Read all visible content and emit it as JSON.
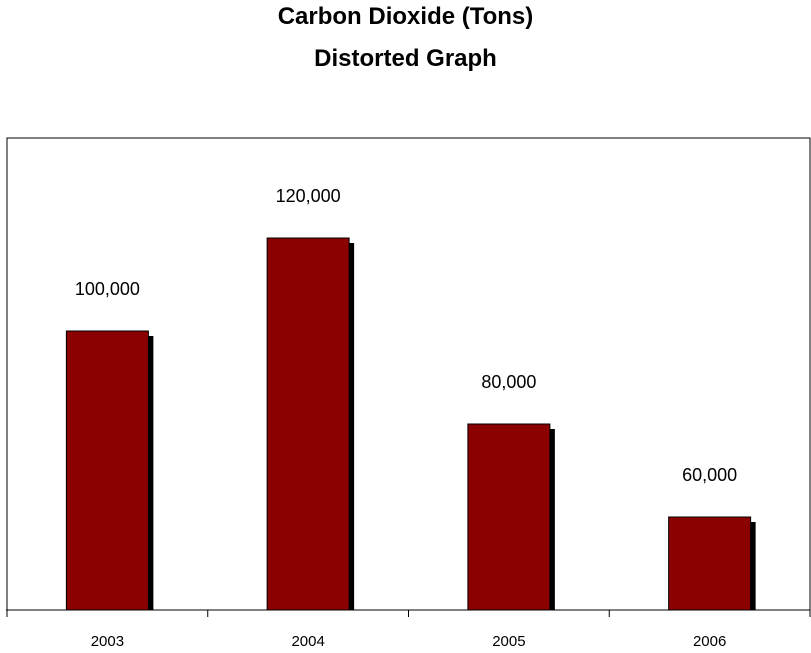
{
  "chart_data": {
    "type": "bar",
    "title": "Carbon Dioxide (Tons)",
    "subtitle": "Distorted Graph",
    "categories": [
      "2003",
      "2004",
      "2005",
      "2006"
    ],
    "values": [
      100000,
      120000,
      80000,
      60000
    ],
    "data_labels": [
      "100,000",
      "120,000",
      "80,000",
      "60,000"
    ],
    "grid": false,
    "legend": false,
    "bar_color": "#8B0000",
    "shadow_color": "#000000"
  }
}
